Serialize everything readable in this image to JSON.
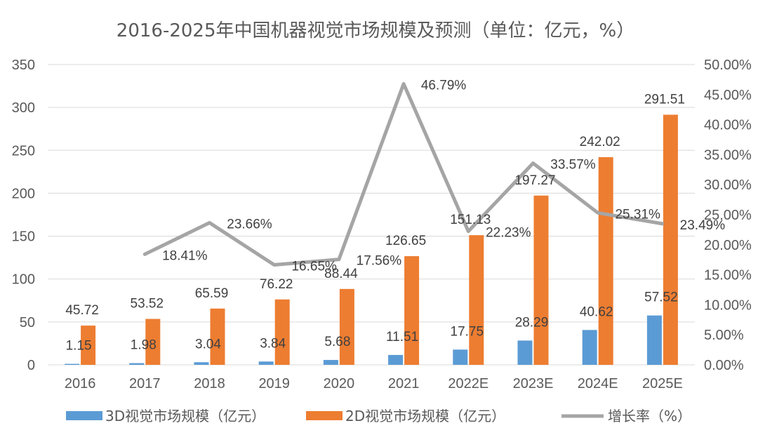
{
  "colors": {
    "series_3d": "#5B9BD5",
    "series_2d": "#ED7D31",
    "growth_line": "#A5A5A5",
    "gridline": "#D9D9D9",
    "text": "#595959"
  },
  "chart_data": {
    "type": "bar",
    "title": "2016-2025年中国机器视觉市场规模及预测（单位：亿元，%）",
    "categories": [
      "2016",
      "2017",
      "2018",
      "2019",
      "2020",
      "2021",
      "2022E",
      "2023E",
      "2024E",
      "2025E"
    ],
    "series": [
      {
        "name": "3D视觉市场规模（亿元）",
        "type": "bar",
        "axis": "left",
        "values": [
          1.15,
          1.98,
          3.04,
          3.84,
          5.68,
          11.51,
          17.75,
          28.29,
          40.62,
          57.52
        ],
        "labels": [
          "1.15",
          "1.98",
          "3.04",
          "3.84",
          "5.68",
          "11.51",
          "17.75",
          "28.29",
          "40.62",
          "57.52"
        ]
      },
      {
        "name": "2D视觉市场规模（亿元）",
        "type": "bar",
        "axis": "left",
        "values": [
          45.72,
          53.52,
          65.59,
          76.22,
          88.44,
          126.65,
          151.13,
          197.27,
          242.02,
          291.51
        ],
        "labels": [
          "45.72",
          "53.52",
          "65.59",
          "76.22",
          "88.44",
          "126.65",
          "151.13",
          "197.27",
          "242.02",
          "291.51"
        ]
      },
      {
        "name": "增长率（%）",
        "type": "line",
        "axis": "right",
        "values": [
          null,
          18.41,
          23.66,
          16.65,
          17.56,
          46.79,
          22.23,
          33.57,
          25.31,
          23.49
        ],
        "labels": [
          "",
          "18.41%",
          "23.66%",
          "16.65%",
          "17.56%",
          "46.79%",
          "22.23%",
          "33.57%",
          "25.31%",
          "23.49%"
        ]
      }
    ],
    "y_left": {
      "range": [
        0,
        350
      ],
      "ticks": [
        0,
        50,
        100,
        150,
        200,
        250,
        300,
        350
      ],
      "tick_labels": [
        "0",
        "50",
        "100",
        "150",
        "200",
        "250",
        "300",
        "350"
      ]
    },
    "y_right": {
      "range": [
        0,
        50
      ],
      "ticks": [
        0,
        5,
        10,
        15,
        20,
        25,
        30,
        35,
        40,
        45,
        50
      ],
      "tick_labels": [
        "0.00%",
        "5.00%",
        "10.00%",
        "15.00%",
        "20.00%",
        "25.00%",
        "30.00%",
        "35.00%",
        "40.00%",
        "45.00%",
        "50.00%"
      ]
    },
    "grid": true,
    "legend_position": "bottom"
  }
}
